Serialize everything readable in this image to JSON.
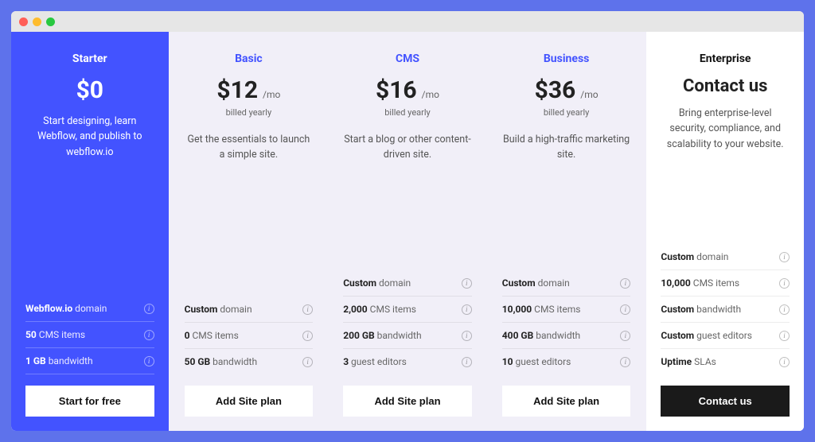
{
  "window": {
    "dot_colors": [
      "#ff5f57",
      "#febc2e",
      "#28c840"
    ],
    "titlebar_bg": "#e6e6e6"
  },
  "theme": {
    "page_bg": "#5e72eb",
    "starter_bg": "#4353ff",
    "std_bg": "#f1eff8",
    "ent_bg": "#ffffff",
    "accent_blue": "#4353ff",
    "text_dark": "#222222",
    "text_muted": "#666666",
    "cta_light_bg": "#ffffff",
    "cta_dark_bg": "#1a1a1a"
  },
  "plans": [
    {
      "id": "starter",
      "variant": "starter",
      "title": "Starter",
      "price": "$0",
      "per": "",
      "billed": "",
      "desc": "Start designing, learn Webflow, and publish to webflow.io",
      "cta": "Start for free",
      "cta_style": "light",
      "features": [
        {
          "bold": "Webflow.io",
          "rest": " domain"
        },
        {
          "bold": "50",
          "rest": " CMS items"
        },
        {
          "bold": "1 GB",
          "rest": " bandwidth"
        }
      ]
    },
    {
      "id": "basic",
      "variant": "std",
      "title": "Basic",
      "price": "$12",
      "per": "/mo",
      "billed": "billed yearly",
      "desc": "Get the essentials to launch a simple site.",
      "cta": "Add Site plan",
      "cta_style": "light",
      "features": [
        {
          "bold": "Custom",
          "rest": " domain"
        },
        {
          "bold": "0",
          "rest": " CMS items"
        },
        {
          "bold": "50 GB",
          "rest": " bandwidth"
        }
      ]
    },
    {
      "id": "cms",
      "variant": "std",
      "title": "CMS",
      "price": "$16",
      "per": "/mo",
      "billed": "billed yearly",
      "desc": "Start a blog or other content-driven site.",
      "cta": "Add Site plan",
      "cta_style": "light",
      "features": [
        {
          "bold": "Custom",
          "rest": " domain"
        },
        {
          "bold": "2,000",
          "rest": " CMS items"
        },
        {
          "bold": "200 GB",
          "rest": " bandwidth"
        },
        {
          "bold": "3",
          "rest": " guest editors"
        }
      ]
    },
    {
      "id": "business",
      "variant": "std",
      "title": "Business",
      "price": "$36",
      "per": "/mo",
      "billed": "billed yearly",
      "desc": "Build a high-traffic marketing site.",
      "cta": "Add Site plan",
      "cta_style": "light",
      "features": [
        {
          "bold": "Custom",
          "rest": " domain"
        },
        {
          "bold": "10,000",
          "rest": " CMS items"
        },
        {
          "bold": "400 GB",
          "rest": " bandwidth"
        },
        {
          "bold": "10",
          "rest": " guest editors"
        }
      ]
    },
    {
      "id": "enterprise",
      "variant": "ent",
      "title": "Enterprise",
      "price": "",
      "contact_head": "Contact us",
      "per": "",
      "billed": "",
      "desc": "Bring enterprise-level security, compliance, and scalability to your website.",
      "cta": "Contact us",
      "cta_style": "dark",
      "features": [
        {
          "bold": "Custom",
          "rest": " domain"
        },
        {
          "bold": "10,000",
          "rest": " CMS items"
        },
        {
          "bold": "Custom",
          "rest": " bandwidth"
        },
        {
          "bold": "Custom",
          "rest": " guest editors"
        },
        {
          "bold": "Uptime",
          "rest": " SLAs"
        }
      ]
    }
  ]
}
